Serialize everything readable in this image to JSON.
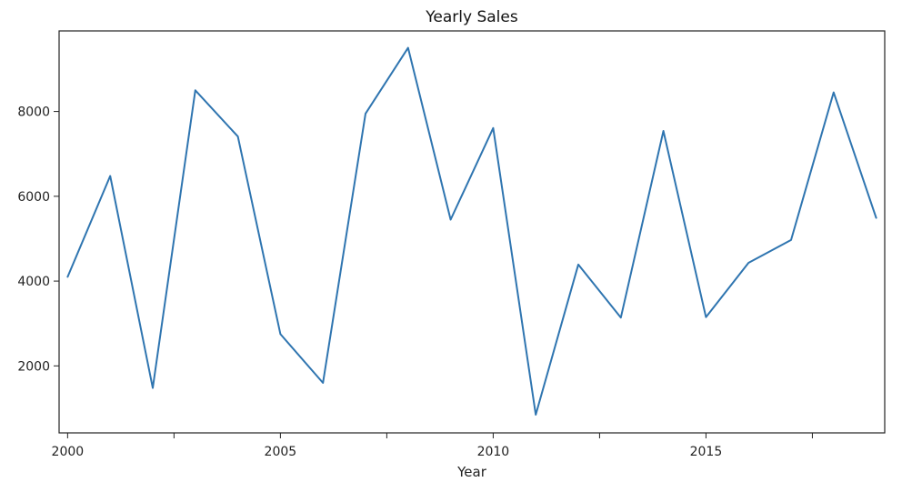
{
  "chart_data": {
    "type": "line",
    "title": "Yearly Sales",
    "xlabel": "Year",
    "ylabel": "",
    "xlim": [
      1999.8,
      2019.2
    ],
    "ylim": [
      420,
      9900
    ],
    "x_ticks": [
      2000,
      2002.5,
      2005,
      2007.5,
      2010,
      2012.5,
      2015,
      2017.5
    ],
    "x_tick_labels": [
      "2000",
      "",
      "2005",
      "",
      "2010",
      "",
      "2015",
      ""
    ],
    "y_ticks": [
      2000,
      4000,
      6000,
      8000
    ],
    "y_tick_labels": [
      "2000",
      "4000",
      "6000",
      "8000"
    ],
    "grid": false,
    "legend": "none",
    "series": [
      {
        "color": "#2f75b0",
        "x": [
          2000,
          2001,
          2002,
          2003,
          2004,
          2005,
          2006,
          2007,
          2008,
          2009,
          2010,
          2011,
          2012,
          2013,
          2014,
          2015,
          2016,
          2017,
          2018,
          2019
        ],
        "y": [
          4100,
          6480,
          1480,
          8500,
          7410,
          2750,
          1600,
          7950,
          9500,
          5450,
          7610,
          850,
          4390,
          3140,
          7540,
          3150,
          4430,
          4970,
          8450,
          5490
        ]
      }
    ]
  }
}
